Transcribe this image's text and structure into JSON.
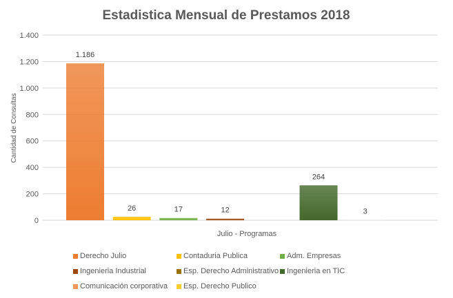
{
  "chart_data": {
    "type": "bar",
    "title": "Estadistica Mensual de Prestamos 2018",
    "xlabel": "Julio - Programas",
    "ylabel": "Cantidad de Consultas",
    "ylim": [
      0,
      1400
    ],
    "yticks": [
      0,
      200,
      400,
      600,
      800,
      1000,
      1200,
      1400
    ],
    "ytick_labels": [
      "0",
      "200",
      "400",
      "600",
      "800",
      "1.000",
      "1.200",
      "1.400"
    ],
    "grid": true,
    "legend_position": "bottom",
    "categories": [
      "Julio - Programas"
    ],
    "series": [
      {
        "name": "Derecho Julio",
        "values": [
          1186
        ],
        "label": "1.186",
        "color": "#ED7D31"
      },
      {
        "name": "Contaduria Publica",
        "values": [
          26
        ],
        "label": "26",
        "color": "#FFC000"
      },
      {
        "name": "Adm. Empresas",
        "values": [
          17
        ],
        "label": "17",
        "color": "#70AD47"
      },
      {
        "name": "Ingenieria Industrial",
        "values": [
          12
        ],
        "label": "12",
        "color": "#9E480E"
      },
      {
        "name": "Esp. Derecho Administrativo",
        "values": [
          0
        ],
        "label": "",
        "color": "#997300"
      },
      {
        "name": "Ingenieria en TIC",
        "values": [
          264
        ],
        "label": "264",
        "color": "#43682B"
      },
      {
        "name": "Comunicación corporativa",
        "values": [
          3
        ],
        "label": "3",
        "color": "#F1975A"
      },
      {
        "name": "Esp. Derecho Publico",
        "values": [
          0
        ],
        "label": "",
        "color": "#FFCD33"
      }
    ]
  }
}
